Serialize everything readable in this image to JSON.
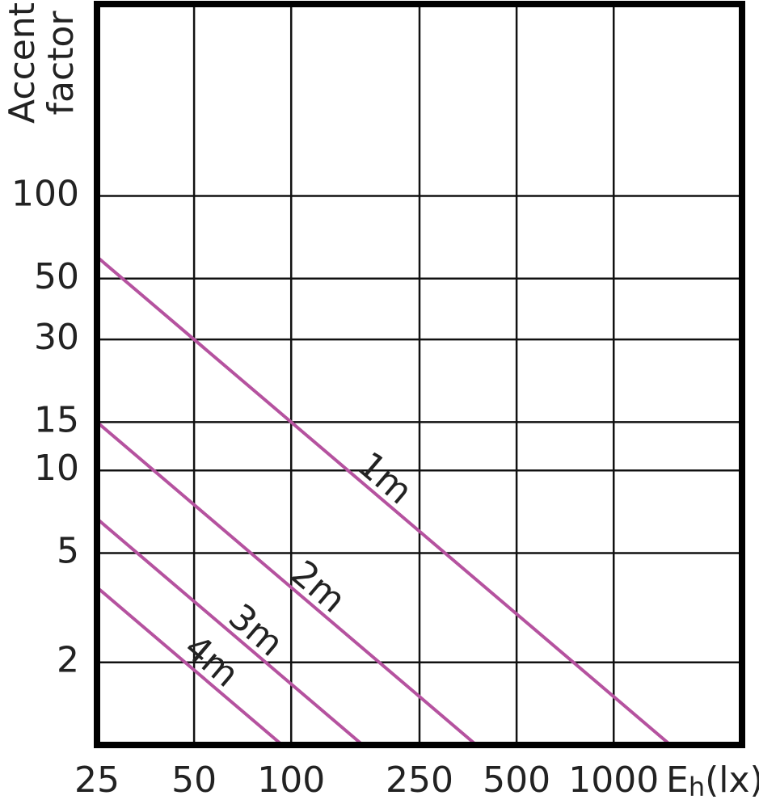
{
  "chart_data": {
    "type": "line",
    "log_x": true,
    "log_y": true,
    "grid": true,
    "y_label": [
      "Accent",
      "factor"
    ],
    "x_label": [
      "E",
      "h",
      "(lx)"
    ],
    "xlim": [
      25,
      2500
    ],
    "ylim": [
      1,
      500
    ],
    "xticks": [
      25,
      50,
      100,
      250,
      500,
      1000
    ],
    "yticks": [
      2,
      5,
      10,
      15,
      30,
      50,
      100
    ],
    "series": [
      {
        "name": "1m",
        "color": "#b5529f",
        "x": [
          25,
          1500
        ],
        "values": [
          60,
          1
        ]
      },
      {
        "name": "2m",
        "color": "#b5529f",
        "x": [
          25,
          375
        ],
        "values": [
          15,
          1
        ]
      },
      {
        "name": "3m",
        "color": "#b5529f",
        "x": [
          25,
          166.7
        ],
        "values": [
          6.67,
          1
        ]
      },
      {
        "name": "4m",
        "color": "#b5529f",
        "x": [
          25,
          93.75
        ],
        "values": [
          3.75,
          1
        ]
      }
    ]
  }
}
